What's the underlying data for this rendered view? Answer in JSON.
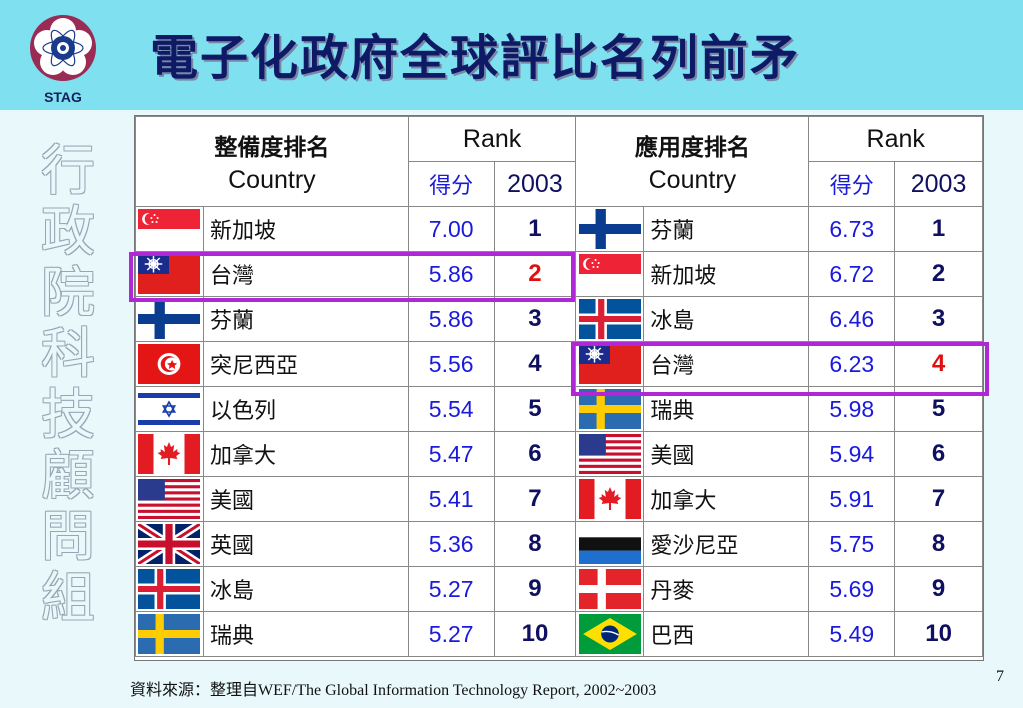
{
  "header": {
    "title": "電子化政府全球評比名列前矛",
    "logo_text": "STAG"
  },
  "side_text": [
    "行",
    "政",
    "院",
    "科",
    "技",
    "顧",
    "問",
    "組"
  ],
  "table": {
    "left": {
      "heading": "整備度排名",
      "country_label": "Country",
      "rank_label": "Rank",
      "score_label": "得分",
      "year_label": "2003",
      "rows": [
        {
          "flag": "singapore-flag",
          "country": "新加坡",
          "score": "7.00",
          "rank": "1"
        },
        {
          "flag": "taiwan-flag",
          "country": "台灣",
          "score": "5.86",
          "rank": "2",
          "highlight": true
        },
        {
          "flag": "finland-flag",
          "country": "芬蘭",
          "score": "5.86",
          "rank": "3"
        },
        {
          "flag": "tunisia-flag",
          "country": "突尼西亞",
          "score": "5.56",
          "rank": "4"
        },
        {
          "flag": "israel-flag",
          "country": "以色列",
          "score": "5.54",
          "rank": "5"
        },
        {
          "flag": "canada-flag",
          "country": "加拿大",
          "score": "5.47",
          "rank": "6"
        },
        {
          "flag": "usa-flag",
          "country": "美國",
          "score": "5.41",
          "rank": "7"
        },
        {
          "flag": "uk-flag",
          "country": "英國",
          "score": "5.36",
          "rank": "8"
        },
        {
          "flag": "iceland-flag",
          "country": "冰島",
          "score": "5.27",
          "rank": "9"
        },
        {
          "flag": "sweden-flag",
          "country": "瑞典",
          "score": "5.27",
          "rank": "10"
        }
      ]
    },
    "right": {
      "heading": "應用度排名",
      "country_label": "Country",
      "rank_label": "Rank",
      "score_label": "得分",
      "year_label": "2003",
      "rows": [
        {
          "flag": "finland-flag",
          "country": "芬蘭",
          "score": "6.73",
          "rank": "1"
        },
        {
          "flag": "singapore-flag",
          "country": "新加坡",
          "score": "6.72",
          "rank": "2"
        },
        {
          "flag": "iceland-flag",
          "country": "冰島",
          "score": "6.46",
          "rank": "3"
        },
        {
          "flag": "taiwan-flag",
          "country": "台灣",
          "score": "6.23",
          "rank": "4",
          "highlight": true
        },
        {
          "flag": "sweden-flag",
          "country": "瑞典",
          "score": "5.98",
          "rank": "5"
        },
        {
          "flag": "usa-flag",
          "country": "美國",
          "score": "5.94",
          "rank": "6"
        },
        {
          "flag": "canada-flag",
          "country": "加拿大",
          "score": "5.91",
          "rank": "7"
        },
        {
          "flag": "estonia-flag",
          "country": "愛沙尼亞",
          "score": "5.75",
          "rank": "8"
        },
        {
          "flag": "denmark-flag",
          "country": "丹麥",
          "score": "5.69",
          "rank": "9"
        },
        {
          "flag": "brazil-flag",
          "country": "巴西",
          "score": "5.49",
          "rank": "10"
        }
      ]
    }
  },
  "colors": {
    "header_bg": "#7fe0ef",
    "page_bg": "#e8f8fb",
    "title": "#0f1a66",
    "highlight_border": "#b028d6",
    "highlight_rank": "#e01010",
    "score_text": "#1a1adc"
  },
  "footer": {
    "source": "資料來源：整理自WEF/The Global Information Technology Report, 2002~2003",
    "page_number": "7"
  }
}
